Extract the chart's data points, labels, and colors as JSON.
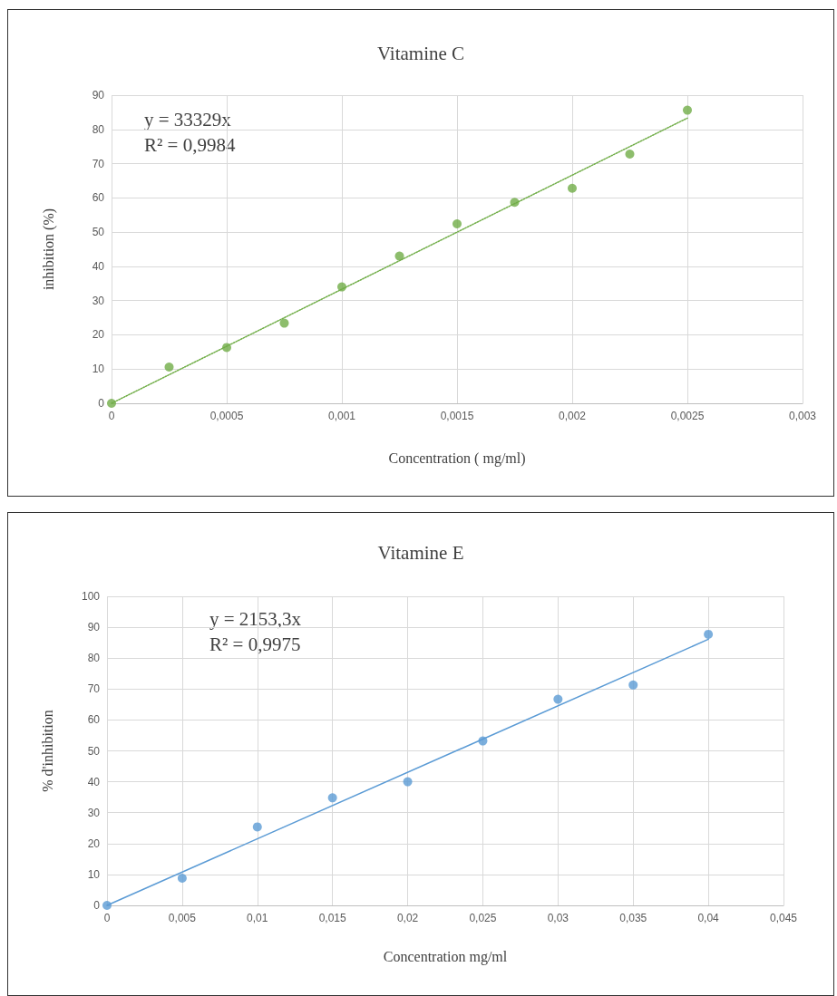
{
  "chart_data": [
    {
      "type": "scatter",
      "title": "Vitamine C",
      "xlabel": "Concentration ( mg/ml)",
      "ylabel": "inhibition (%)",
      "xlim": [
        0,
        0.003
      ],
      "xticks": [
        0,
        {
          "value": 0.0005,
          "label": "0,0005"
        },
        {
          "value": 0.001,
          "label": "0,001"
        },
        {
          "value": 0.0015,
          "label": "0,0015"
        },
        {
          "value": 0.002,
          "label": "0,002"
        },
        {
          "value": 0.0025,
          "label": "0,0025"
        },
        {
          "value": 0.003,
          "label": "0,003"
        }
      ],
      "ylim": [
        0,
        90
      ],
      "yticks": [
        0,
        10,
        20,
        30,
        40,
        50,
        60,
        70,
        80,
        90
      ],
      "grid": true,
      "marker": "circle",
      "annotations": [
        "y = 33329x",
        "R² = 0,9984"
      ],
      "series": [
        {
          "color": "#70ad47",
          "x": [
            0,
            0.00025,
            0.0005,
            0.00075,
            0.001,
            0.00125,
            0.0015,
            0.00175,
            0.002,
            0.00225,
            0.0025
          ],
          "values": [
            0,
            10.6,
            16.3,
            23.4,
            34,
            43,
            52.4,
            58.7,
            62.8,
            72.8,
            85.6
          ]
        },
        {
          "type": "line",
          "color": "#70ad47",
          "x": [
            0,
            0.0025
          ],
          "values": [
            0,
            83.3
          ],
          "marker": "none",
          "line_style": "dotted"
        }
      ]
    },
    {
      "type": "scatter",
      "title": "Vitamine E",
      "xlabel": "Concentration mg/ml",
      "ylabel": "% d'inhibition",
      "xlim": [
        0,
        0.045
      ],
      "xticks": [
        0,
        {
          "value": 0.005,
          "label": "0,005"
        },
        {
          "value": 0.01,
          "label": "0,01"
        },
        {
          "value": 0.015,
          "label": "0,015"
        },
        {
          "value": 0.02,
          "label": "0,02"
        },
        {
          "value": 0.025,
          "label": "0,025"
        },
        {
          "value": 0.03,
          "label": "0,03"
        },
        {
          "value": 0.035,
          "label": "0,035"
        },
        {
          "value": 0.04,
          "label": "0,04"
        },
        {
          "value": 0.045,
          "label": "0,045"
        }
      ],
      "ylim": [
        0,
        100
      ],
      "yticks": [
        0,
        10,
        20,
        30,
        40,
        50,
        60,
        70,
        80,
        90,
        100
      ],
      "grid": true,
      "marker": "circle",
      "annotations": [
        "y = 2153,3x",
        "R² = 0,9975"
      ],
      "series": [
        {
          "color": "#5b9bd5",
          "x": [
            0,
            0.005,
            0.01,
            0.015,
            0.02,
            0.025,
            0.03,
            0.035,
            0.04
          ],
          "values": [
            0,
            8.8,
            25.4,
            34.8,
            40,
            53.2,
            66.7,
            71.3,
            87.7
          ]
        },
        {
          "type": "line",
          "color": "#5b9bd5",
          "x": [
            0,
            0.04
          ],
          "values": [
            0,
            86.1
          ],
          "marker": "none",
          "line_style": "solid"
        }
      ]
    }
  ]
}
